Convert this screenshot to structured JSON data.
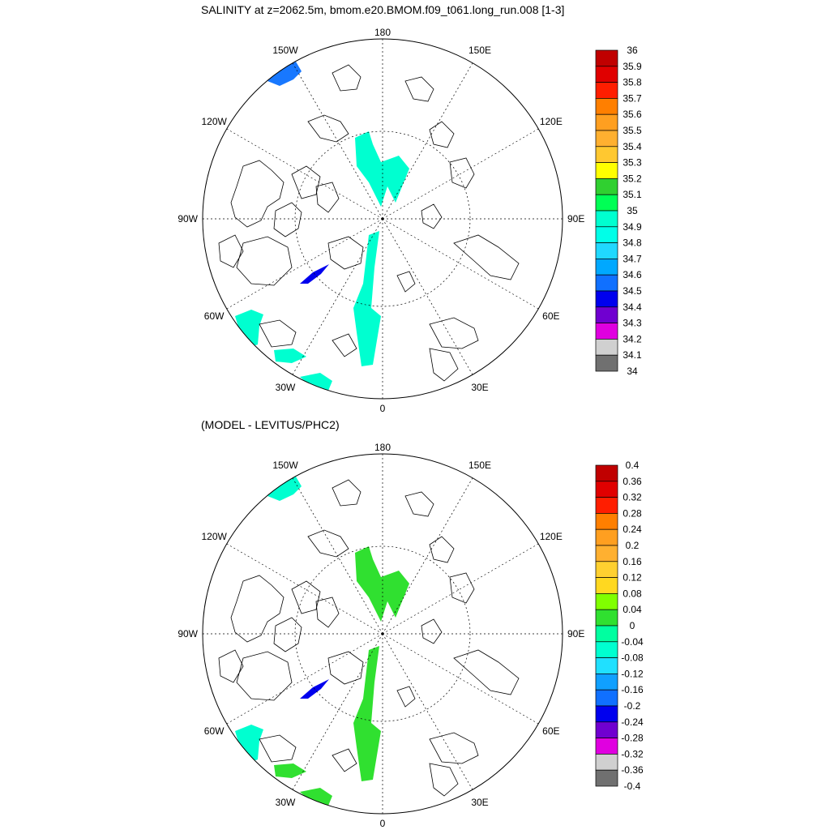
{
  "panels": [
    {
      "title": "SALINITY at z=2062.5m, bmom.e20.BMOM.f09_t061.long_run.008 [1-3]",
      "lon_labels": [
        "180",
        "150E",
        "120E",
        "90E",
        "60E",
        "30E",
        "0",
        "30W",
        "60W",
        "90W",
        "120W",
        "150W"
      ],
      "colorbar": {
        "levels": [
          "36",
          "35.9",
          "35.8",
          "35.7",
          "35.6",
          "35.5",
          "35.4",
          "35.3",
          "35.2",
          "35.1",
          "35",
          "34.9",
          "34.8",
          "34.7",
          "34.6",
          "34.5",
          "34.4",
          "34.3",
          "34.2",
          "34.1",
          "34"
        ],
        "colors": [
          "#c00000",
          "#e00000",
          "#ff1e00",
          "#ff7f00",
          "#ff9f20",
          "#ffb030",
          "#ffc830",
          "#ffff00",
          "#30d030",
          "#00ff55",
          "#00ffd0",
          "#00ffe8",
          "#20d8ff",
          "#00a8ff",
          "#1070ff",
          "#0000ee",
          "#7000d0",
          "#e000e0",
          "#d0d0d0",
          "#707070"
        ]
      },
      "regions": [
        {
          "name": "region-150w",
          "color": "#1878ff"
        },
        {
          "name": "region-center-north",
          "color": "#00ffd0"
        },
        {
          "name": "region-center-south",
          "color": "#00ffd0"
        },
        {
          "name": "region-canada-basin-blue",
          "color": "#0000ee"
        },
        {
          "name": "region-60w",
          "color": "#00ffd0"
        },
        {
          "name": "region-30w",
          "color": "#00ffd0"
        }
      ]
    },
    {
      "title": "(MODEL - LEVITUS/PHC2)",
      "lon_labels": [
        "180",
        "150E",
        "120E",
        "90E",
        "60E",
        "30E",
        "0",
        "30W",
        "60W",
        "90W",
        "120W",
        "150W"
      ],
      "colorbar": {
        "levels": [
          "0.4",
          "0.36",
          "0.32",
          "0.28",
          "0.24",
          "0.2",
          "0.16",
          "0.12",
          "0.08",
          "0.04",
          "0",
          "-0.04",
          "-0.08",
          "-0.12",
          "-0.16",
          "-0.2",
          "-0.24",
          "-0.28",
          "-0.32",
          "-0.36",
          "-0.4"
        ],
        "colors": [
          "#c00000",
          "#e00000",
          "#ff1e00",
          "#ff7f00",
          "#ff9f20",
          "#ffb030",
          "#ffd030",
          "#ffd820",
          "#80ff00",
          "#30e030",
          "#00ffa0",
          "#00ffd0",
          "#20e0ff",
          "#10a0ff",
          "#1070ff",
          "#0000ee",
          "#7000d0",
          "#e000e0",
          "#d0d0d0",
          "#707070"
        ]
      },
      "regions": [
        {
          "name": "region-150w",
          "color": "#00ffd0"
        },
        {
          "name": "region-center-north",
          "color": "#30e030"
        },
        {
          "name": "region-center-south",
          "color": "#30e030"
        },
        {
          "name": "region-canada-basin-blue",
          "color": "#0000ee"
        },
        {
          "name": "region-60w",
          "color": "#00ffd0"
        },
        {
          "name": "region-30w",
          "color": "#30e030"
        }
      ]
    }
  ]
}
